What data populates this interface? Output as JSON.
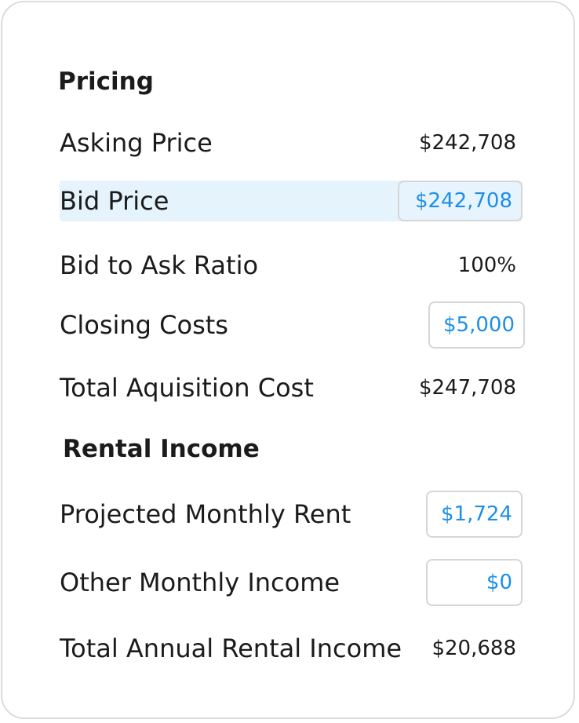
{
  "pricing": {
    "title": "Pricing",
    "asking_price": {
      "label": "Asking Price",
      "value": "$242,708"
    },
    "bid_price": {
      "label": "Bid Price",
      "value": "$242,708"
    },
    "bid_to_ask_ratio": {
      "label": "Bid to Ask Ratio",
      "value": "100%"
    },
    "closing_costs": {
      "label": "Closing Costs",
      "value": "$5,000"
    },
    "total_acquisition_cost": {
      "label": "Total Aquisition Cost",
      "value": "$247,708"
    }
  },
  "rental_income": {
    "title": "Rental Income",
    "projected_monthly_rent": {
      "label": "Projected Monthly Rent",
      "value": "$1,724"
    },
    "other_monthly_income": {
      "label": "Other Monthly Income",
      "value": "$0"
    },
    "total_annual_rental_income": {
      "label": "Total Annual Rental Income",
      "value": "$20,688"
    }
  },
  "colors": {
    "input_text": "#1e8fe8",
    "highlight_row": "#e5f3fd",
    "border": "#d6d6d6"
  }
}
